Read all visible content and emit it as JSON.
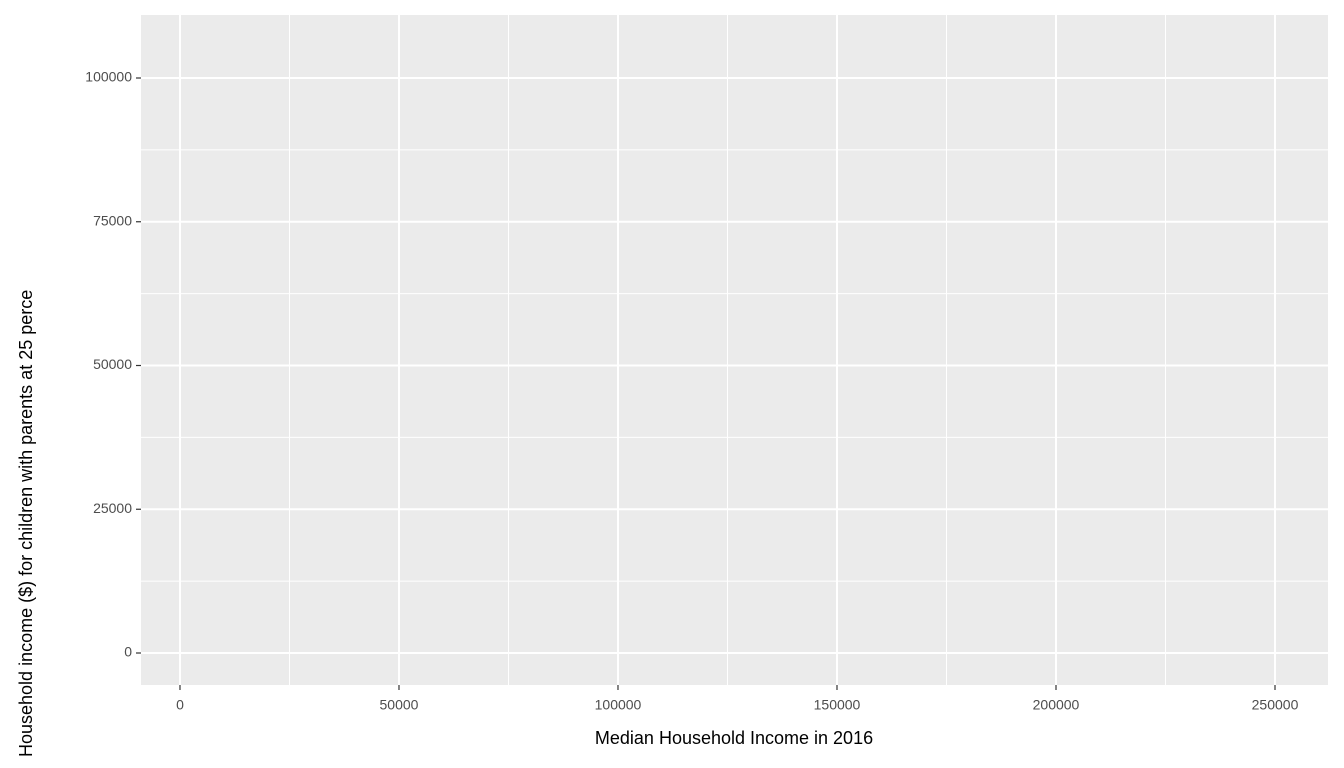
{
  "chart_data": {
    "type": "scatter",
    "xlabel": "Median Household Income in 2016",
    "ylabel": "Household income ($) for children with parents at 25 perce",
    "x": [],
    "values": [],
    "xlim": [
      -8900,
      262100
    ],
    "ylim": [
      -5565,
      110957
    ],
    "xticks": [
      0,
      50000,
      100000,
      150000,
      200000,
      250000
    ],
    "yticks": [
      0,
      25000,
      50000,
      75000,
      100000
    ],
    "grid": true
  }
}
